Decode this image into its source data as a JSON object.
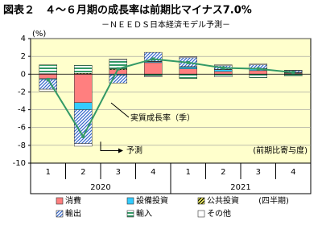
{
  "chart_data": {
    "type": "bar",
    "title": "図表２　４～６月期の成長率は前期比マイナス7.0%",
    "subtitle": "－ＮＥＥＤＳ日本経済モデル予測－",
    "y_unit": "(%)",
    "categories": [
      "1",
      "2",
      "3",
      "4",
      "1",
      "2",
      "3",
      "4"
    ],
    "x_groups": [
      "2020",
      "2021"
    ],
    "ylim": [
      -10,
      4
    ],
    "yticks": [
      -10,
      -8,
      -6,
      -4,
      -2,
      0,
      2,
      4
    ],
    "grid": true,
    "series": [
      {
        "name": "消費",
        "color": "#ff7f7f",
        "pattern": "solid",
        "values": [
          -0.5,
          -3.2,
          0.5,
          1.3,
          0.6,
          0.3,
          0.4,
          0.1
        ]
      },
      {
        "name": "設備投資",
        "color": "#33ccff",
        "pattern": "solid",
        "values": [
          -0.1,
          -0.8,
          -0.1,
          0.1,
          0.2,
          0.2,
          0.2,
          0.05
        ]
      },
      {
        "name": "公共投資",
        "color": "#ffff66",
        "pattern": "hatch",
        "values": [
          0.05,
          0.1,
          0.1,
          0.05,
          0.05,
          0.05,
          0.05,
          0.05
        ]
      },
      {
        "name": "輸出",
        "color": "#3366cc",
        "pattern": "hatch",
        "values": [
          -1.1,
          -3.8,
          -0.9,
          1.0,
          1.0,
          0.4,
          0.4,
          0.2
        ]
      },
      {
        "name": "輸入",
        "color": "#339966",
        "pattern": "stripes",
        "values": [
          1.0,
          0.9,
          1.0,
          -0.2,
          -0.5,
          -0.3,
          -0.4,
          -0.2
        ]
      },
      {
        "name": "その他",
        "color": "#ffffff",
        "pattern": "solid",
        "values": [
          -0.2,
          -0.3,
          0.1,
          -0.1,
          0.1,
          0.1,
          0.1,
          0.05
        ]
      }
    ],
    "line": {
      "name": "実質成長率（季）",
      "color": "#339966",
      "values": [
        -0.6,
        -7.0,
        0.6,
        1.7,
        1.3,
        0.7,
        0.6,
        0.2
      ]
    },
    "forecast_label": "予測",
    "value_note": "(前期比寄与度)",
    "legend_note": "(四半期)"
  }
}
